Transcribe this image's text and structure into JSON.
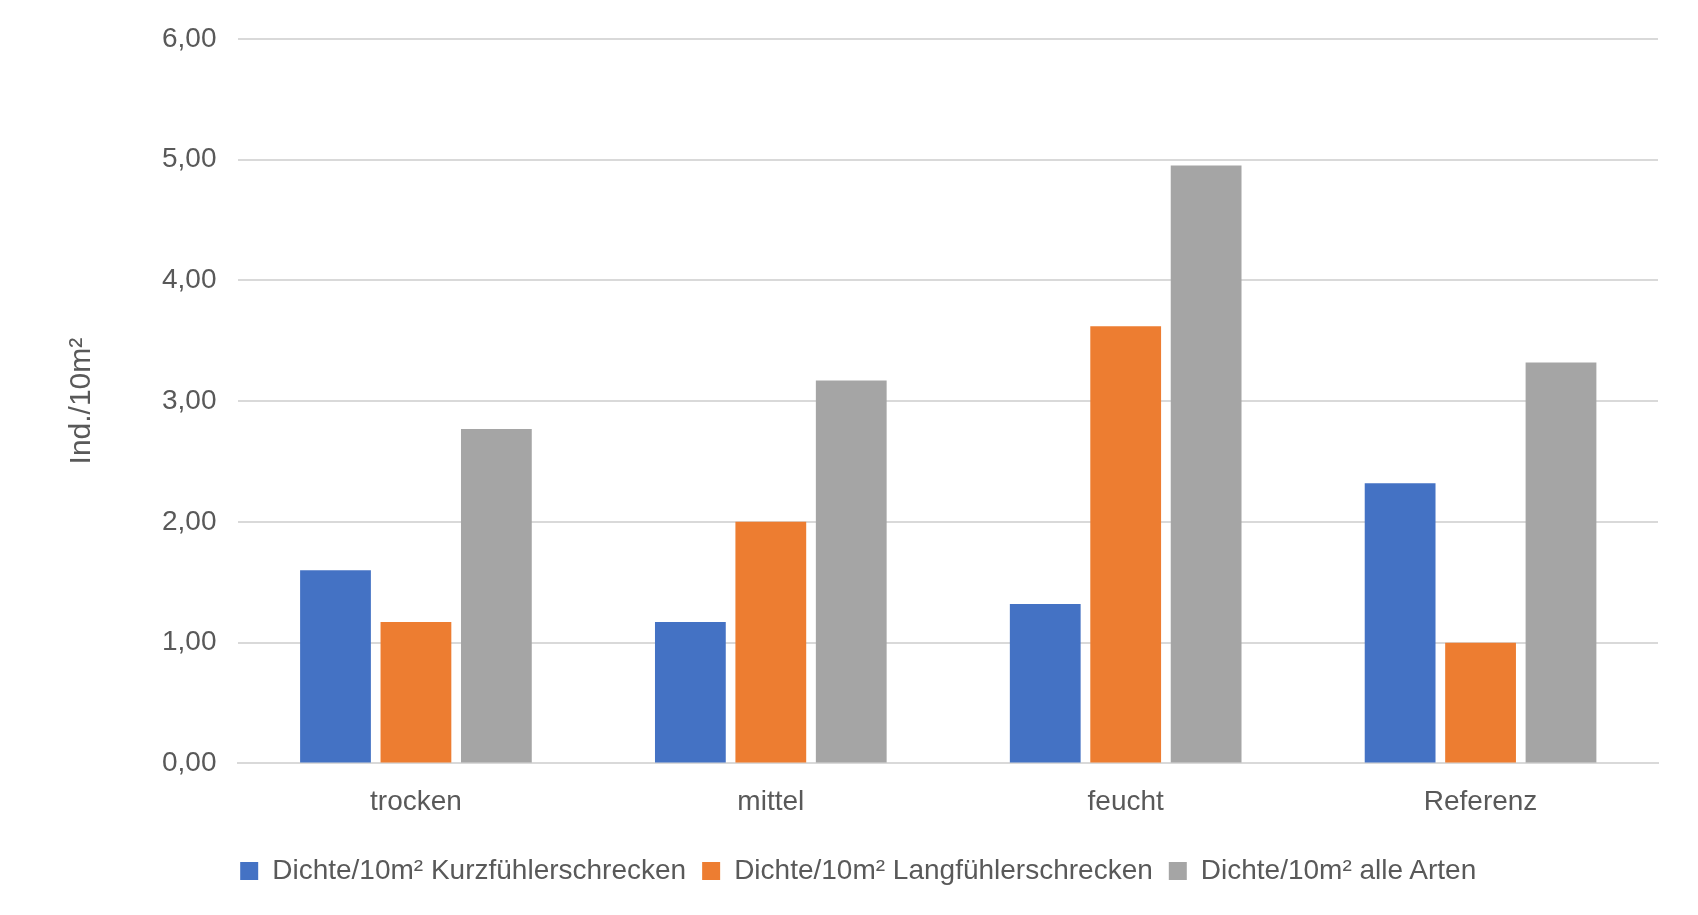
{
  "chart_data": {
    "type": "bar",
    "ylabel": "Ind./10m²",
    "categories": [
      "trocken",
      "mittel",
      "feucht",
      "Referenz"
    ],
    "series": [
      {
        "name": "Dichte/10m² Kurzfühlerschrecken",
        "color": "#4472c4",
        "values": [
          1.6,
          1.17,
          1.32,
          2.32
        ]
      },
      {
        "name": "Dichte/10m² Langfühlerschrecken",
        "color": "#ed7d31",
        "values": [
          1.17,
          2.0,
          3.62,
          1.0
        ]
      },
      {
        "name": "Dichte/10m² alle Arten",
        "color": "#a5a5a5",
        "values": [
          2.77,
          3.17,
          4.95,
          3.32
        ]
      }
    ],
    "ylim": [
      0,
      6
    ],
    "yticks": [
      {
        "value": 0,
        "label": "0,00"
      },
      {
        "value": 1,
        "label": "1,00"
      },
      {
        "value": 2,
        "label": "2,00"
      },
      {
        "value": 3,
        "label": "3,00"
      },
      {
        "value": 4,
        "label": "4,00"
      },
      {
        "value": 5,
        "label": "5,00"
      },
      {
        "value": 6,
        "label": "6,00"
      }
    ],
    "grid": "y",
    "legend": "bottom"
  }
}
